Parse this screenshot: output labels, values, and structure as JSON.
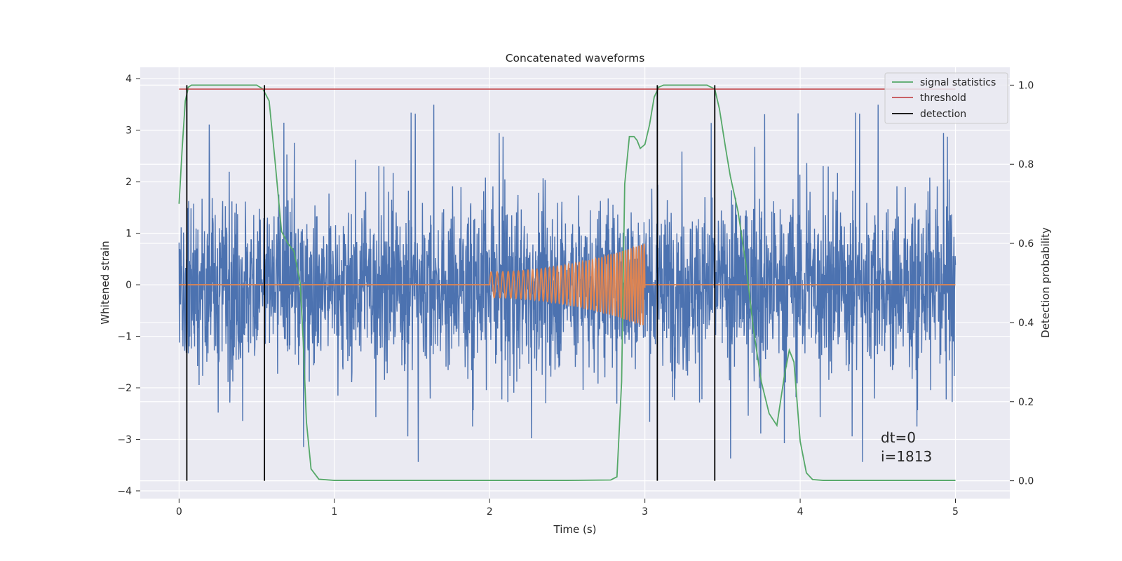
{
  "chart_data": {
    "type": "line",
    "title": "Concatenated waveforms",
    "xlabel": "Time (s)",
    "ylabel_left": "Whitened strain",
    "ylabel_right": "Detection probability",
    "xlim": [
      -0.25,
      5.35
    ],
    "ylim_left": [
      -4.15,
      4.22
    ],
    "ylim_right": [
      -0.045,
      1.045
    ],
    "xticks": [
      0,
      1,
      2,
      3,
      4,
      5
    ],
    "xtick_labels": [
      "0",
      "1",
      "2",
      "3",
      "4",
      "5"
    ],
    "yticks_left": [
      -4,
      -3,
      -2,
      -1,
      0,
      1,
      2,
      3,
      4
    ],
    "ytick_labels_left": [
      "−4",
      "−3",
      "−2",
      "−1",
      "0",
      "1",
      "2",
      "3",
      "4"
    ],
    "yticks_right": [
      0.0,
      0.2,
      0.4,
      0.6,
      0.8,
      1.0
    ],
    "ytick_labels_right": [
      "0.0",
      "0.2",
      "0.4",
      "0.6",
      "0.8",
      "1.0"
    ],
    "grid": true,
    "legend_position": "top-right",
    "legend": [
      {
        "label": "signal statistics",
        "color": "#55a868"
      },
      {
        "label": "threshold",
        "color": "#c44e52"
      },
      {
        "label": "detection",
        "color": "#000000"
      }
    ],
    "noise": {
      "x_start": 0,
      "x_end": 5,
      "typical_peak": 2.0,
      "max": 3.85,
      "min": -3.75,
      "color": "#4c72b0"
    },
    "chirp": {
      "x_start": 2.0,
      "x_end": 3.0,
      "amp_start": 0.25,
      "amp_end": 0.8,
      "f_start": 25,
      "f_end": 60,
      "baseline": 0,
      "color": "#dd8452"
    },
    "signal_statistics": {
      "color": "#55a868",
      "x": [
        0.0,
        0.02,
        0.04,
        0.06,
        0.08,
        0.12,
        0.5,
        0.54,
        0.58,
        0.62,
        0.66,
        0.7,
        0.74,
        0.78,
        0.8,
        0.82,
        0.85,
        0.9,
        1.0,
        1.5,
        2.0,
        2.5,
        2.78,
        2.82,
        2.85,
        2.87,
        2.9,
        2.93,
        2.95,
        2.97,
        3.0,
        3.03,
        3.06,
        3.09,
        3.12,
        3.15,
        3.2,
        3.4,
        3.45,
        3.48,
        3.52,
        3.55,
        3.6,
        3.65,
        3.7,
        3.75,
        3.8,
        3.85,
        3.9,
        3.93,
        3.96,
        4.0,
        4.04,
        4.08,
        4.15,
        4.5,
        5.0
      ],
      "y": [
        0.7,
        0.84,
        0.96,
        0.995,
        1.0,
        1.0,
        1.0,
        0.99,
        0.96,
        0.8,
        0.63,
        0.6,
        0.58,
        0.5,
        0.35,
        0.15,
        0.03,
        0.004,
        0.001,
        0.001,
        0.001,
        0.001,
        0.002,
        0.01,
        0.25,
        0.75,
        0.87,
        0.87,
        0.86,
        0.84,
        0.85,
        0.9,
        0.97,
        0.995,
        1.0,
        1.0,
        1.0,
        1.0,
        0.99,
        0.94,
        0.84,
        0.77,
        0.68,
        0.55,
        0.38,
        0.25,
        0.17,
        0.14,
        0.27,
        0.33,
        0.3,
        0.1,
        0.02,
        0.003,
        0.001,
        0.001,
        0.001
      ]
    },
    "threshold": {
      "value": 0.99,
      "x_start": 0,
      "x_end": 5,
      "color": "#c44e52"
    },
    "detections": [
      0.05,
      0.55,
      3.08,
      3.45
    ],
    "detection_range": [
      0.0,
      1.0
    ],
    "annotations": [
      "dt=0",
      "i=1813"
    ]
  }
}
